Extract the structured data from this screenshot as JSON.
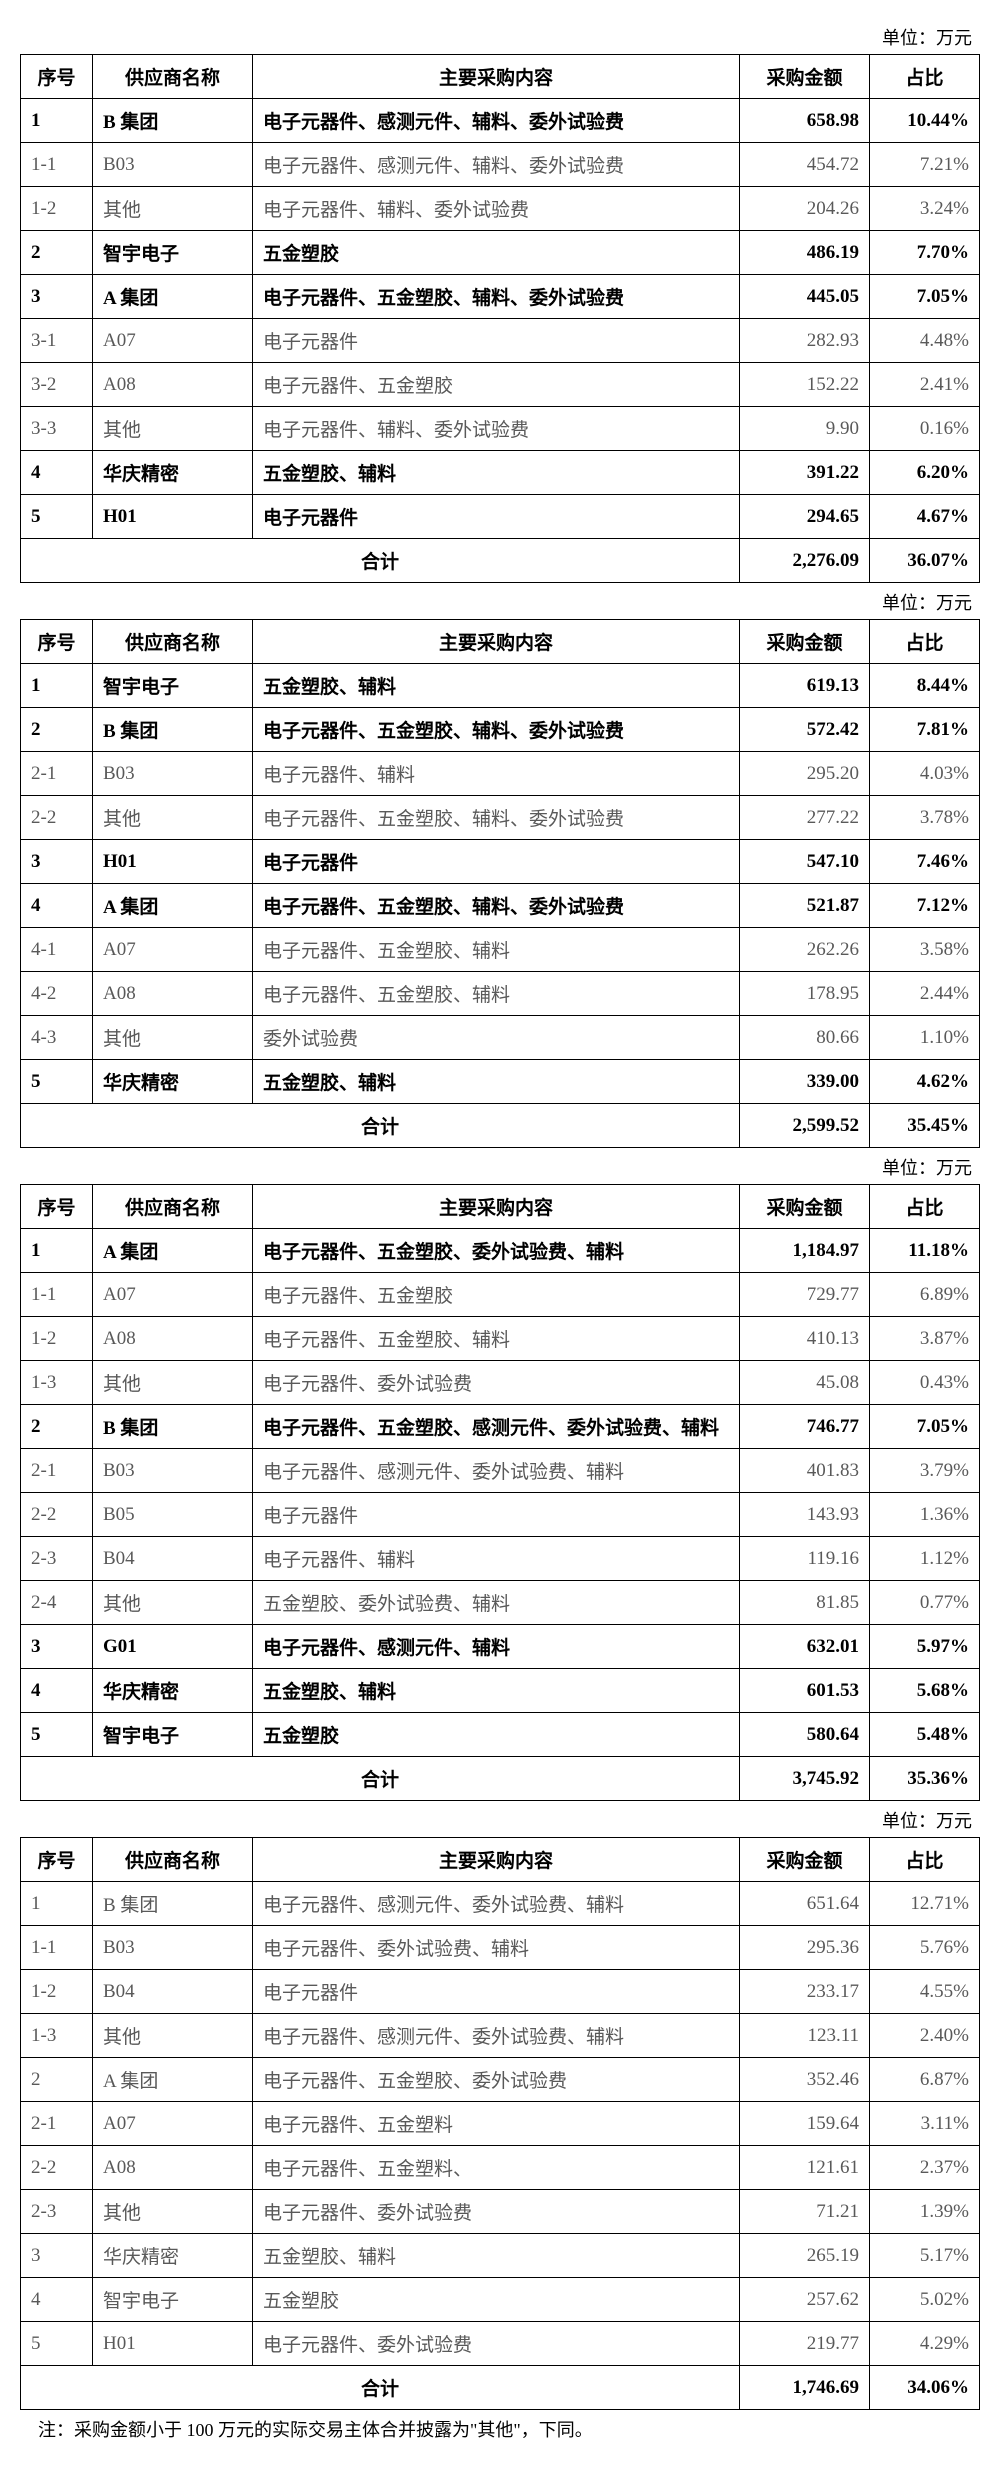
{
  "unit_label": "单位：万元",
  "headers": {
    "idx": "序号",
    "supplier": "供应商名称",
    "content": "主要采购内容",
    "amount": "采购金额",
    "ratio": "占比"
  },
  "total_label": "合计",
  "footnote": "注：采购金额小于 100 万元的实际交易主体合并披露为\"其他\"，下同。",
  "tables": [
    {
      "rows": [
        {
          "bold": true,
          "idx": "1",
          "supplier": "B 集团",
          "content": "电子元器件、感测元件、辅料、委外试验费",
          "amount": "658.98",
          "ratio": "10.44%"
        },
        {
          "bold": false,
          "idx": "1-1",
          "supplier": "B03",
          "content": "电子元器件、感测元件、辅料、委外试验费",
          "amount": "454.72",
          "ratio": "7.21%"
        },
        {
          "bold": false,
          "idx": "1-2",
          "supplier": "其他",
          "content": "电子元器件、辅料、委外试验费",
          "amount": "204.26",
          "ratio": "3.24%"
        },
        {
          "bold": true,
          "idx": "2",
          "supplier": "智宇电子",
          "content": "五金塑胶",
          "amount": "486.19",
          "ratio": "7.70%"
        },
        {
          "bold": true,
          "idx": "3",
          "supplier": "A 集团",
          "content": "电子元器件、五金塑胶、辅料、委外试验费",
          "amount": "445.05",
          "ratio": "7.05%"
        },
        {
          "bold": false,
          "idx": "3-1",
          "supplier": "A07",
          "content": "电子元器件",
          "amount": "282.93",
          "ratio": "4.48%"
        },
        {
          "bold": false,
          "idx": "3-2",
          "supplier": "A08",
          "content": "电子元器件、五金塑胶",
          "amount": "152.22",
          "ratio": "2.41%"
        },
        {
          "bold": false,
          "idx": "3-3",
          "supplier": "其他",
          "content": "电子元器件、辅料、委外试验费",
          "amount": "9.90",
          "ratio": "0.16%"
        },
        {
          "bold": true,
          "idx": "4",
          "supplier": "华庆精密",
          "content": "五金塑胶、辅料",
          "amount": "391.22",
          "ratio": "6.20%"
        },
        {
          "bold": true,
          "idx": "5",
          "supplier": "H01",
          "content": "电子元器件",
          "amount": "294.65",
          "ratio": "4.67%"
        }
      ],
      "total": {
        "amount": "2,276.09",
        "ratio": "36.07%"
      }
    },
    {
      "rows": [
        {
          "bold": true,
          "idx": "1",
          "supplier": "智宇电子",
          "content": "五金塑胶、辅料",
          "amount": "619.13",
          "ratio": "8.44%"
        },
        {
          "bold": true,
          "idx": "2",
          "supplier": "B 集团",
          "content": "电子元器件、五金塑胶、辅料、委外试验费",
          "amount": "572.42",
          "ratio": "7.81%"
        },
        {
          "bold": false,
          "idx": "2-1",
          "supplier": "B03",
          "content": "电子元器件、辅料",
          "amount": "295.20",
          "ratio": "4.03%"
        },
        {
          "bold": false,
          "idx": "2-2",
          "supplier": "其他",
          "content": "电子元器件、五金塑胶、辅料、委外试验费",
          "amount": "277.22",
          "ratio": "3.78%"
        },
        {
          "bold": true,
          "idx": "3",
          "supplier": "H01",
          "content": "电子元器件",
          "amount": "547.10",
          "ratio": "7.46%"
        },
        {
          "bold": true,
          "idx": "4",
          "supplier": "A 集团",
          "content": "电子元器件、五金塑胶、辅料、委外试验费",
          "amount": "521.87",
          "ratio": "7.12%"
        },
        {
          "bold": false,
          "idx": "4-1",
          "supplier": "A07",
          "content": "电子元器件、五金塑胶、辅料",
          "amount": "262.26",
          "ratio": "3.58%"
        },
        {
          "bold": false,
          "idx": "4-2",
          "supplier": "A08",
          "content": "电子元器件、五金塑胶、辅料",
          "amount": "178.95",
          "ratio": "2.44%"
        },
        {
          "bold": false,
          "idx": "4-3",
          "supplier": "其他",
          "content": "委外试验费",
          "amount": "80.66",
          "ratio": "1.10%"
        },
        {
          "bold": true,
          "idx": "5",
          "supplier": "华庆精密",
          "content": "五金塑胶、辅料",
          "amount": "339.00",
          "ratio": "4.62%"
        }
      ],
      "total": {
        "amount": "2,599.52",
        "ratio": "35.45%"
      }
    },
    {
      "rows": [
        {
          "bold": true,
          "idx": "1",
          "supplier": "A 集团",
          "content": "电子元器件、五金塑胶、委外试验费、辅料",
          "amount": "1,184.97",
          "ratio": "11.18%"
        },
        {
          "bold": false,
          "idx": "1-1",
          "supplier": "A07",
          "content": "电子元器件、五金塑胶",
          "amount": "729.77",
          "ratio": "6.89%"
        },
        {
          "bold": false,
          "idx": "1-2",
          "supplier": "A08",
          "content": "电子元器件、五金塑胶、辅料",
          "amount": "410.13",
          "ratio": "3.87%"
        },
        {
          "bold": false,
          "idx": "1-3",
          "supplier": "其他",
          "content": "电子元器件、委外试验费",
          "amount": "45.08",
          "ratio": "0.43%"
        },
        {
          "bold": true,
          "idx": "2",
          "supplier": "B 集团",
          "content": "电子元器件、五金塑胶、感测元件、委外试验费、辅料",
          "amount": "746.77",
          "ratio": "7.05%"
        },
        {
          "bold": false,
          "idx": "2-1",
          "supplier": "B03",
          "content": "电子元器件、感测元件、委外试验费、辅料",
          "amount": "401.83",
          "ratio": "3.79%"
        },
        {
          "bold": false,
          "idx": "2-2",
          "supplier": "B05",
          "content": "电子元器件",
          "amount": "143.93",
          "ratio": "1.36%"
        },
        {
          "bold": false,
          "idx": "2-3",
          "supplier": "B04",
          "content": "电子元器件、辅料",
          "amount": "119.16",
          "ratio": "1.12%"
        },
        {
          "bold": false,
          "idx": "2-4",
          "supplier": "其他",
          "content": "五金塑胶、委外试验费、辅料",
          "amount": "81.85",
          "ratio": "0.77%"
        },
        {
          "bold": true,
          "idx": "3",
          "supplier": "G01",
          "content": "电子元器件、感测元件、辅料",
          "amount": "632.01",
          "ratio": "5.97%"
        },
        {
          "bold": true,
          "idx": "4",
          "supplier": "华庆精密",
          "content": "五金塑胶、辅料",
          "amount": "601.53",
          "ratio": "5.68%"
        },
        {
          "bold": true,
          "idx": "5",
          "supplier": "智宇电子",
          "content": "五金塑胶",
          "amount": "580.64",
          "ratio": "5.48%"
        }
      ],
      "total": {
        "amount": "3,745.92",
        "ratio": "35.36%"
      }
    },
    {
      "rows": [
        {
          "bold": false,
          "idx": "1",
          "supplier": "B 集团",
          "content": "电子元器件、感测元件、委外试验费、辅料",
          "amount": "651.64",
          "ratio": "12.71%"
        },
        {
          "bold": false,
          "idx": "1-1",
          "supplier": "B03",
          "content": "电子元器件、委外试验费、辅料",
          "amount": "295.36",
          "ratio": "5.76%"
        },
        {
          "bold": false,
          "idx": "1-2",
          "supplier": "B04",
          "content": "电子元器件",
          "amount": "233.17",
          "ratio": "4.55%"
        },
        {
          "bold": false,
          "idx": "1-3",
          "supplier": "其他",
          "content": "电子元器件、感测元件、委外试验费、辅料",
          "amount": "123.11",
          "ratio": "2.40%"
        },
        {
          "bold": false,
          "idx": "2",
          "supplier": "A 集团",
          "content": "电子元器件、五金塑胶、委外试验费",
          "amount": "352.46",
          "ratio": "6.87%"
        },
        {
          "bold": false,
          "idx": "2-1",
          "supplier": "A07",
          "content": "电子元器件、五金塑料",
          "amount": "159.64",
          "ratio": "3.11%"
        },
        {
          "bold": false,
          "idx": "2-2",
          "supplier": "A08",
          "content": "电子元器件、五金塑料、",
          "amount": "121.61",
          "ratio": "2.37%"
        },
        {
          "bold": false,
          "idx": "2-3",
          "supplier": "其他",
          "content": "电子元器件、委外试验费",
          "amount": "71.21",
          "ratio": "1.39%"
        },
        {
          "bold": false,
          "idx": "3",
          "supplier": "华庆精密",
          "content": "五金塑胶、辅料",
          "amount": "265.19",
          "ratio": "5.17%"
        },
        {
          "bold": false,
          "idx": "4",
          "supplier": "智宇电子",
          "content": "五金塑胶",
          "amount": "257.62",
          "ratio": "5.02%"
        },
        {
          "bold": false,
          "idx": "5",
          "supplier": "H01",
          "content": "电子元器件、委外试验费",
          "amount": "219.77",
          "ratio": "4.29%"
        }
      ],
      "total": {
        "amount": "1,746.69",
        "ratio": "34.06%"
      }
    }
  ]
}
